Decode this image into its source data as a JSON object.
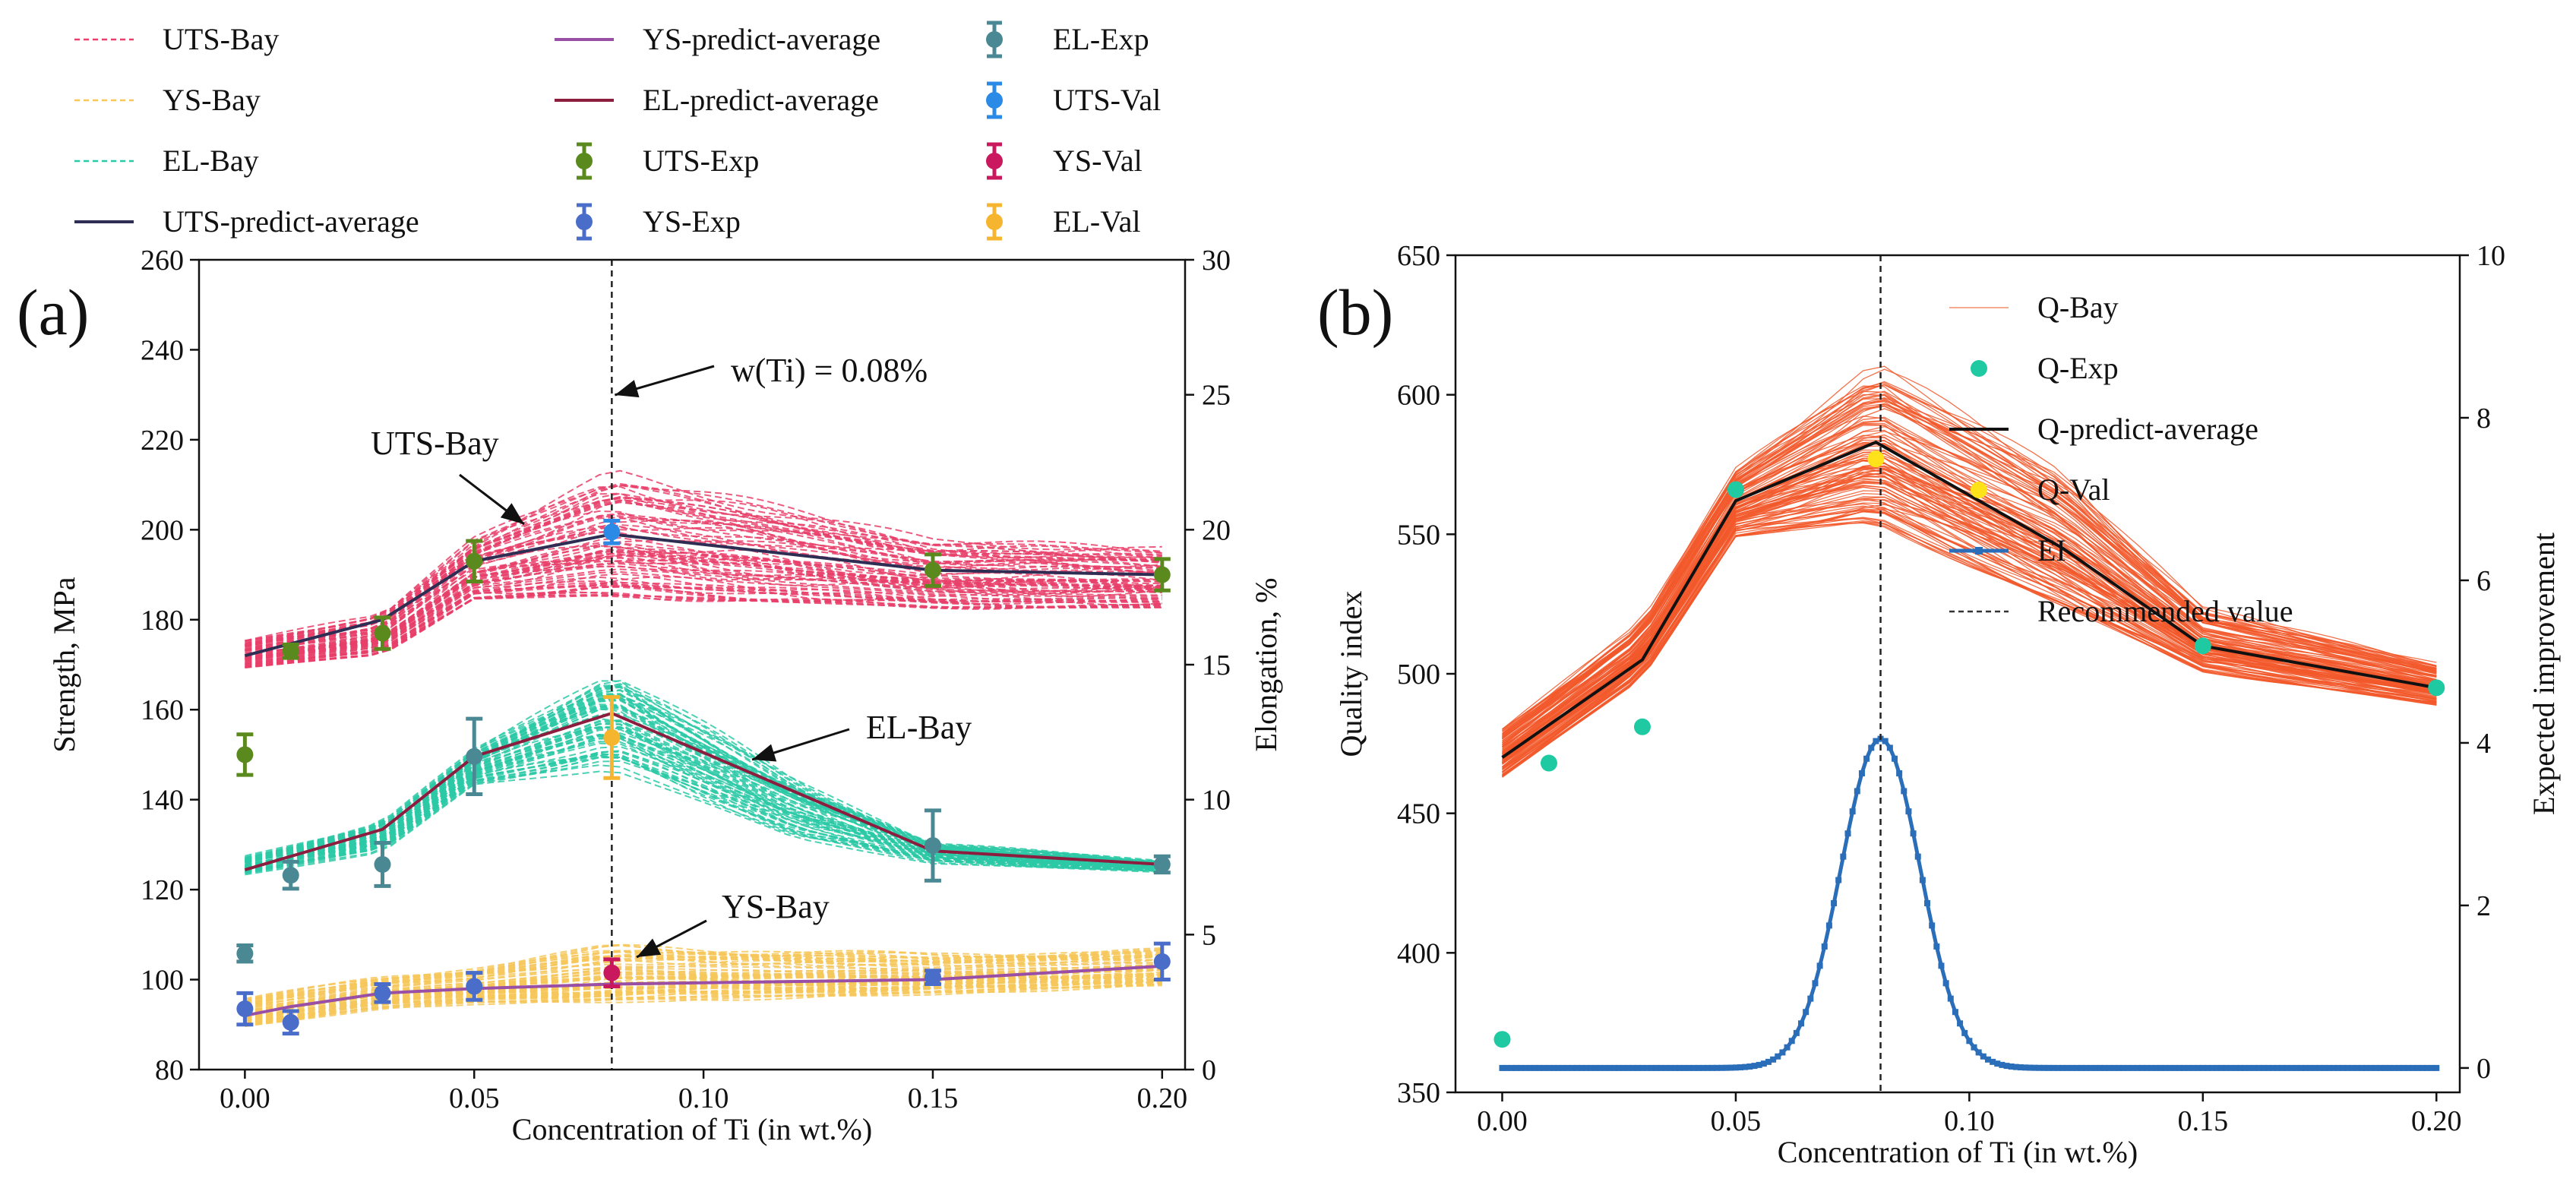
{
  "figure": {
    "panel_a_label": "(a)",
    "panel_b_label": "(b)"
  },
  "chart_data": [
    {
      "id": "panel-a",
      "type": "line",
      "panel_label": "(a)",
      "xlabel": "Concentration of Ti (in wt.%)",
      "ylabel_left": "Strength, MPa",
      "ylabel_right": "Elongation, %",
      "xlim": [
        -0.01,
        0.205
      ],
      "ylim_left": [
        80,
        260
      ],
      "ylim_right": [
        0,
        30
      ],
      "xticks": [
        "0.00",
        "0.05",
        "0.10",
        "0.15",
        "0.20"
      ],
      "xtick_values": [
        0,
        0.05,
        0.1,
        0.15,
        0.2
      ],
      "yticks_left": [
        "80",
        "100",
        "120",
        "140",
        "160",
        "180",
        "200",
        "220",
        "240",
        "260"
      ],
      "yticks_right": [
        "0",
        "5",
        "10",
        "15",
        "20",
        "25",
        "30"
      ],
      "recommended_x": 0.08,
      "legend": [
        {
          "label": "UTS-Bay",
          "style": "dashed",
          "color": "#e8406a"
        },
        {
          "label": "YS-Bay",
          "style": "dashed",
          "color": "#f6c75a"
        },
        {
          "label": "EL-Bay",
          "style": "dashed",
          "color": "#2cc9a6"
        },
        {
          "label": "UTS-predict-average",
          "style": "line",
          "color": "#2e2e54"
        },
        {
          "label": "YS-predict-average",
          "style": "line",
          "color": "#9a4fa6"
        },
        {
          "label": "EL-predict-average",
          "style": "line",
          "color": "#8c1d3e"
        },
        {
          "label": "UTS-Exp",
          "style": "errorbar",
          "color": "#5a8a1e"
        },
        {
          "label": "YS-Exp",
          "style": "errorbar",
          "color": "#4a6dc9"
        },
        {
          "label": "EL-Exp",
          "style": "errorbar",
          "color": "#4a8894"
        },
        {
          "label": "UTS-Val",
          "style": "errorbar",
          "color": "#2b8ae6"
        },
        {
          "label": "YS-Val",
          "style": "errorbar",
          "color": "#c9185e"
        },
        {
          "label": "EL-Val",
          "style": "errorbar",
          "color": "#f6b52e"
        }
      ],
      "annotations": [
        {
          "text": "w(Ti) = 0.08%"
        },
        {
          "text": "UTS-Bay"
        },
        {
          "text": "EL-Bay"
        },
        {
          "text": "YS-Bay"
        }
      ],
      "bands": [
        {
          "name": "UTS-Bay",
          "axis": "left",
          "color": "#e8406a",
          "x": [
            0,
            0.03,
            0.05,
            0.08,
            0.15,
            0.2
          ],
          "lower": [
            169,
            172,
            184,
            184,
            182,
            182
          ],
          "upper": [
            176,
            182,
            199,
            215,
            199,
            197
          ]
        },
        {
          "name": "EL-Bay",
          "axis": "right",
          "color": "#2cc9a6",
          "x": [
            0,
            0.03,
            0.05,
            0.08,
            0.12,
            0.15,
            0.2
          ],
          "lower": [
            7.2,
            8.0,
            10.5,
            11.0,
            8.5,
            7.6,
            7.3
          ],
          "upper": [
            8.0,
            9.3,
            12.0,
            15.3,
            11.0,
            8.5,
            7.8
          ]
        },
        {
          "name": "YS-Bay",
          "axis": "left",
          "color": "#f6c75a",
          "x": [
            0,
            0.03,
            0.05,
            0.08,
            0.15,
            0.2
          ],
          "lower": [
            89,
            93,
            94,
            94,
            96,
            98
          ],
          "upper": [
            96,
            101,
            103,
            108,
            106,
            107
          ]
        }
      ],
      "series": [
        {
          "name": "UTS-predict-average",
          "axis": "left",
          "color": "#2e2e54",
          "x": [
            0,
            0.03,
            0.05,
            0.08,
            0.15,
            0.2
          ],
          "y": [
            172,
            180,
            193,
            199,
            191,
            190
          ]
        },
        {
          "name": "EL-predict-average",
          "axis": "right",
          "color": "#8c1d3e",
          "x": [
            0,
            0.03,
            0.05,
            0.08,
            0.15,
            0.2
          ],
          "y": [
            7.4,
            8.9,
            11.6,
            13.2,
            8.1,
            7.6
          ]
        },
        {
          "name": "YS-predict-average",
          "axis": "left",
          "color": "#9a4fa6",
          "x": [
            0,
            0.01,
            0.03,
            0.05,
            0.08,
            0.15,
            0.2
          ],
          "y": [
            92,
            94,
            97,
            98,
            99,
            100,
            103
          ]
        }
      ],
      "errorbars": [
        {
          "name": "UTS-Exp",
          "axis": "left",
          "color": "#5a8a1e",
          "x": [
            0,
            0.01,
            0.03,
            0.05,
            0.15,
            0.2
          ],
          "y": [
            150,
            173,
            177,
            193,
            191,
            190
          ],
          "err": [
            4.5,
            1.5,
            3.5,
            4.5,
            3.5,
            3.5
          ]
        },
        {
          "name": "YS-Exp",
          "axis": "left",
          "color": "#4a6dc9",
          "x": [
            0,
            0.01,
            0.03,
            0.05,
            0.15,
            0.2
          ],
          "y": [
            93.5,
            90.5,
            97,
            98.5,
            100.5,
            104
          ],
          "err": [
            3.5,
            2.5,
            2,
            3,
            1.5,
            4
          ]
        },
        {
          "name": "EL-Exp",
          "axis": "right",
          "color": "#4a8894",
          "x": [
            0,
            0.01,
            0.03,
            0.05,
            0.15,
            0.2
          ],
          "y": [
            4.3,
            7.2,
            7.6,
            11.6,
            8.3,
            7.6
          ],
          "err": [
            0.3,
            0.5,
            0.8,
            1.4,
            1.3,
            0.3
          ]
        },
        {
          "name": "UTS-Val",
          "axis": "left",
          "color": "#2b8ae6",
          "x": [
            0.08
          ],
          "y": [
            199.5
          ],
          "err": [
            2.5
          ]
        },
        {
          "name": "YS-Val",
          "axis": "left",
          "color": "#c9185e",
          "x": [
            0.08
          ],
          "y": [
            101.5
          ],
          "err": [
            3
          ]
        },
        {
          "name": "EL-Val",
          "axis": "right",
          "color": "#f6b52e",
          "x": [
            0.08
          ],
          "y": [
            12.3
          ],
          "err": [
            1.5
          ]
        }
      ]
    },
    {
      "id": "panel-b",
      "type": "line",
      "panel_label": "(b)",
      "xlabel": "Concentration of Ti (in wt.%)",
      "ylabel_left": "Quality index",
      "ylabel_right": "Expected improvement",
      "xlim": [
        -0.01,
        0.205
      ],
      "ylim_left": [
        350,
        650
      ],
      "ylim_right": [
        -0.3,
        10
      ],
      "xticks": [
        "0.00",
        "0.05",
        "0.10",
        "0.15",
        "0.20"
      ],
      "xtick_values": [
        0,
        0.05,
        0.1,
        0.15,
        0.2
      ],
      "yticks_left": [
        "350",
        "400",
        "450",
        "500",
        "550",
        "600",
        "650"
      ],
      "yticks_right": [
        "0",
        "2",
        "4",
        "6",
        "8",
        "10"
      ],
      "recommended_x": 0.081,
      "legend": [
        {
          "label": "Q-Bay",
          "style": "thin-line",
          "color": "#f28f6b"
        },
        {
          "label": "Q-Exp",
          "style": "dot",
          "color": "#1fc9a2"
        },
        {
          "label": "Q-predict-average",
          "style": "line",
          "color": "#111111"
        },
        {
          "label": "Q-Val",
          "style": "dot",
          "color": "#ffe21a"
        },
        {
          "label": "EI",
          "style": "line-marker",
          "color": "#2a6db8"
        },
        {
          "label": "Recommended value",
          "style": "dashed",
          "color": "#333333"
        }
      ],
      "bands": [
        {
          "name": "Q-Bay",
          "axis": "left",
          "color": "#f2582a",
          "x": [
            0,
            0.03,
            0.05,
            0.08,
            0.12,
            0.15,
            0.2
          ],
          "lower": [
            462,
            498,
            548,
            552,
            522,
            500,
            488
          ],
          "upper": [
            482,
            520,
            575,
            615,
            575,
            525,
            505
          ]
        }
      ],
      "series": [
        {
          "name": "Q-predict-average",
          "axis": "left",
          "color": "#111111",
          "x": [
            0,
            0.03,
            0.05,
            0.08,
            0.12,
            0.15,
            0.2
          ],
          "y": [
            470,
            505,
            562,
            583,
            545,
            510,
            495
          ]
        }
      ],
      "scatter": [
        {
          "name": "Q-Exp",
          "axis": "left",
          "color": "#1fc9a2",
          "x": [
            0,
            0.01,
            0.03,
            0.05,
            0.15,
            0.2
          ],
          "y": [
            369,
            468,
            481,
            566,
            510,
            495
          ]
        },
        {
          "name": "Q-Val",
          "axis": "left",
          "color": "#ffe21a",
          "x": [
            0.08
          ],
          "y": [
            577
          ]
        }
      ],
      "ei": {
        "name": "EI",
        "axis": "right",
        "color": "#2a6db8",
        "center": 0.081,
        "peak": 4.05,
        "width": 0.0085,
        "x_start": 0.0,
        "x_end": 0.2,
        "step": 0.001
      }
    }
  ]
}
